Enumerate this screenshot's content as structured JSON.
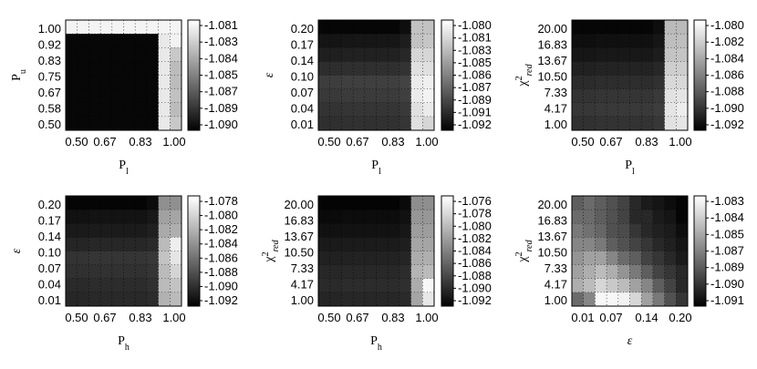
{
  "chart_data": [
    {
      "type": "heatmap",
      "xlabel": "P_l",
      "ylabel": "P_u",
      "xticks": [
        "0.50",
        "0.67",
        "0.83",
        "1.00"
      ],
      "yticks": [
        "1.00",
        "0.92",
        "0.83",
        "0.75",
        "0.67",
        "0.58",
        "0.50"
      ],
      "colorbar": {
        "ticks": [
          "-1.081",
          "-1.083",
          "-1.084",
          "-1.085",
          "-1.087",
          "-1.089",
          "-1.090"
        ],
        "range": [
          -1.0915,
          -1.08
        ]
      },
      "values": [
        [
          -1.0805,
          -1.0805,
          -1.0805,
          -1.0805,
          -1.0805,
          -1.0805,
          -1.0805,
          -1.0805,
          -1.0805,
          -1.0805
        ],
        [
          -1.0912,
          -1.0912,
          -1.0912,
          -1.0912,
          -1.0912,
          -1.0912,
          -1.0912,
          -1.0912,
          -1.081,
          -1.0806
        ],
        [
          -1.0912,
          -1.0912,
          -1.0912,
          -1.0912,
          -1.0912,
          -1.0912,
          -1.0912,
          -1.0912,
          -1.081,
          -1.0825
        ],
        [
          -1.0912,
          -1.0912,
          -1.0912,
          -1.0912,
          -1.0912,
          -1.0912,
          -1.0912,
          -1.0912,
          -1.081,
          -1.083
        ],
        [
          -1.0912,
          -1.0912,
          -1.0912,
          -1.0912,
          -1.0912,
          -1.0912,
          -1.0912,
          -1.0912,
          -1.081,
          -1.083
        ],
        [
          -1.0912,
          -1.0912,
          -1.0912,
          -1.0912,
          -1.0912,
          -1.0912,
          -1.0912,
          -1.0912,
          -1.081,
          -1.0828
        ],
        [
          -1.0912,
          -1.0912,
          -1.0912,
          -1.0912,
          -1.0912,
          -1.0912,
          -1.0912,
          -1.0912,
          -1.081,
          -1.083
        ],
        [
          -1.0912,
          -1.0912,
          -1.0912,
          -1.0912,
          -1.0912,
          -1.0912,
          -1.0912,
          -1.0912,
          -1.081,
          -1.0825
        ]
      ]
    },
    {
      "type": "heatmap",
      "xlabel": "P_l",
      "ylabel": "ε",
      "xticks": [
        "0.50",
        "0.67",
        "0.83",
        "1.00"
      ],
      "yticks": [
        "0.20",
        "0.17",
        "0.14",
        "0.10",
        "0.07",
        "0.04",
        "0.01"
      ],
      "colorbar": {
        "ticks": [
          "-1.080",
          "-1.081",
          "-1.083",
          "-1.085",
          "-1.086",
          "-1.087",
          "-1.089",
          "-1.091",
          "-1.092"
        ],
        "range": [
          -1.0925,
          -1.08
        ]
      },
      "values": [
        [
          -1.0922,
          -1.0922,
          -1.0922,
          -1.0922,
          -1.0922,
          -1.0922,
          -1.0922,
          -1.0918,
          -1.083,
          -1.083
        ],
        [
          -1.0915,
          -1.0915,
          -1.0914,
          -1.0914,
          -1.0914,
          -1.0914,
          -1.0914,
          -1.0911,
          -1.083,
          -1.0828
        ],
        [
          -1.091,
          -1.091,
          -1.0909,
          -1.0909,
          -1.0909,
          -1.0909,
          -1.0909,
          -1.0906,
          -1.082,
          -1.082
        ],
        [
          -1.0903,
          -1.0903,
          -1.0902,
          -1.0902,
          -1.0902,
          -1.0902,
          -1.0902,
          -1.09,
          -1.0815,
          -1.0815
        ],
        [
          -1.0895,
          -1.0895,
          -1.0894,
          -1.0894,
          -1.0894,
          -1.0894,
          -1.0894,
          -1.0892,
          -1.081,
          -1.0808
        ],
        [
          -1.0897,
          -1.0897,
          -1.0896,
          -1.0896,
          -1.0896,
          -1.0896,
          -1.0896,
          -1.0894,
          -1.081,
          -1.0806
        ],
        [
          -1.09,
          -1.09,
          -1.0899,
          -1.0899,
          -1.0899,
          -1.0899,
          -1.0899,
          -1.0897,
          -1.0815,
          -1.081
        ],
        [
          -1.0902,
          -1.0902,
          -1.0901,
          -1.0901,
          -1.0901,
          -1.0901,
          -1.0901,
          -1.0899,
          -1.0815,
          -1.082
        ]
      ]
    },
    {
      "type": "heatmap",
      "xlabel": "P_l",
      "ylabel": "χ²_red",
      "xticks": [
        "0.50",
        "0.67",
        "0.83",
        "1.00"
      ],
      "yticks": [
        "20.00",
        "16.83",
        "13.67",
        "10.50",
        "7.33",
        "4.17",
        "1.00"
      ],
      "colorbar": {
        "ticks": [
          "-1.080",
          "-1.082",
          "-1.084",
          "-1.086",
          "-1.088",
          "-1.090",
          "-1.092"
        ],
        "range": [
          -1.0925,
          -1.0795
        ]
      },
      "values": [
        [
          -1.0922,
          -1.0922,
          -1.0922,
          -1.0922,
          -1.0922,
          -1.0922,
          -1.0922,
          -1.0918,
          -1.083,
          -1.083
        ],
        [
          -1.0918,
          -1.0918,
          -1.0917,
          -1.0917,
          -1.0917,
          -1.0917,
          -1.0917,
          -1.0914,
          -1.0828,
          -1.0828
        ],
        [
          -1.0914,
          -1.0914,
          -1.0913,
          -1.0913,
          -1.0913,
          -1.0913,
          -1.0913,
          -1.091,
          -1.0825,
          -1.0825
        ],
        [
          -1.0908,
          -1.0908,
          -1.0907,
          -1.0907,
          -1.0907,
          -1.0907,
          -1.0907,
          -1.0905,
          -1.082,
          -1.082
        ],
        [
          -1.0903,
          -1.0903,
          -1.0902,
          -1.0902,
          -1.0902,
          -1.0902,
          -1.0902,
          -1.09,
          -1.0815,
          -1.0815
        ],
        [
          -1.0899,
          -1.0899,
          -1.0898,
          -1.0898,
          -1.0898,
          -1.0898,
          -1.0898,
          -1.0896,
          -1.081,
          -1.0808
        ],
        [
          -1.0897,
          -1.0897,
          -1.0896,
          -1.0896,
          -1.0896,
          -1.0896,
          -1.0896,
          -1.0894,
          -1.0808,
          -1.0804
        ],
        [
          -1.09,
          -1.09,
          -1.0899,
          -1.0899,
          -1.0899,
          -1.0899,
          -1.0899,
          -1.0897,
          -1.081,
          -1.0808
        ]
      ]
    },
    {
      "type": "heatmap",
      "xlabel": "P_h",
      "ylabel": "ε",
      "xticks": [
        "0.50",
        "0.67",
        "0.83",
        "1.00"
      ],
      "yticks": [
        "0.20",
        "0.17",
        "0.14",
        "0.10",
        "0.07",
        "0.04",
        "0.01"
      ],
      "colorbar": {
        "ticks": [
          "-1.078",
          "-1.080",
          "-1.082",
          "-1.084",
          "-1.086",
          "-1.088",
          "-1.090",
          "-1.092"
        ],
        "range": [
          -1.0925,
          -1.0775
        ]
      },
      "values": [
        [
          -1.0922,
          -1.0922,
          -1.0922,
          -1.0922,
          -1.0922,
          -1.0922,
          -1.0922,
          -1.0918,
          -1.084,
          -1.084
        ],
        [
          -1.0915,
          -1.0915,
          -1.0914,
          -1.0914,
          -1.0914,
          -1.0914,
          -1.0914,
          -1.0911,
          -1.083,
          -1.0828
        ],
        [
          -1.091,
          -1.091,
          -1.0909,
          -1.0909,
          -1.0909,
          -1.0909,
          -1.0909,
          -1.0906,
          -1.0825,
          -1.0822
        ],
        [
          -1.0903,
          -1.0903,
          -1.0902,
          -1.0902,
          -1.0902,
          -1.0902,
          -1.0902,
          -1.09,
          -1.0815,
          -1.0785
        ],
        [
          -1.0895,
          -1.0895,
          -1.0894,
          -1.0894,
          -1.0894,
          -1.0894,
          -1.0894,
          -1.0892,
          -1.081,
          -1.079
        ],
        [
          -1.0897,
          -1.0897,
          -1.0896,
          -1.0896,
          -1.0896,
          -1.0896,
          -1.0896,
          -1.0894,
          -1.0815,
          -1.08
        ],
        [
          -1.09,
          -1.09,
          -1.0899,
          -1.0899,
          -1.0899,
          -1.0899,
          -1.0899,
          -1.0897,
          -1.0815,
          -1.081
        ],
        [
          -1.0902,
          -1.0902,
          -1.0901,
          -1.0901,
          -1.0901,
          -1.0901,
          -1.0901,
          -1.0899,
          -1.082,
          -1.0815
        ]
      ]
    },
    {
      "type": "heatmap",
      "xlabel": "P_h",
      "ylabel": "χ²_red",
      "xticks": [
        "0.50",
        "0.67",
        "0.83",
        "1.00"
      ],
      "yticks": [
        "20.00",
        "16.83",
        "13.67",
        "10.50",
        "7.33",
        "4.17",
        "1.00"
      ],
      "colorbar": {
        "ticks": [
          "-1.076",
          "-1.078",
          "-1.080",
          "-1.082",
          "-1.084",
          "-1.086",
          "-1.088",
          "-1.090",
          "-1.092"
        ],
        "range": [
          -1.0925,
          -1.0755
        ]
      },
      "values": [
        [
          -1.0922,
          -1.0922,
          -1.0922,
          -1.0922,
          -1.0922,
          -1.0922,
          -1.0922,
          -1.0918,
          -1.083,
          -1.083
        ],
        [
          -1.0918,
          -1.0918,
          -1.0917,
          -1.0917,
          -1.0917,
          -1.0917,
          -1.0917,
          -1.0914,
          -1.0825,
          -1.0825
        ],
        [
          -1.0914,
          -1.0914,
          -1.0913,
          -1.0913,
          -1.0913,
          -1.0913,
          -1.0913,
          -1.091,
          -1.082,
          -1.082
        ],
        [
          -1.0908,
          -1.0908,
          -1.0907,
          -1.0907,
          -1.0907,
          -1.0907,
          -1.0907,
          -1.0905,
          -1.0815,
          -1.0815
        ],
        [
          -1.0903,
          -1.0903,
          -1.0902,
          -1.0902,
          -1.0902,
          -1.0902,
          -1.0902,
          -1.09,
          -1.081,
          -1.0808
        ],
        [
          -1.0899,
          -1.0899,
          -1.0898,
          -1.0898,
          -1.0898,
          -1.0898,
          -1.0898,
          -1.0896,
          -1.0805,
          -1.08
        ],
        [
          -1.0897,
          -1.0897,
          -1.0896,
          -1.0896,
          -1.0896,
          -1.0896,
          -1.0896,
          -1.0894,
          -1.081,
          -1.076
        ],
        [
          -1.09,
          -1.09,
          -1.0899,
          -1.0899,
          -1.0899,
          -1.0899,
          -1.0899,
          -1.0897,
          -1.0815,
          -1.077
        ]
      ]
    },
    {
      "type": "heatmap",
      "xlabel": "ε",
      "ylabel": "χ²_red",
      "xticks": [
        "0.01",
        "0.07",
        "0.14",
        "0.20"
      ],
      "yticks": [
        "20.00",
        "16.83",
        "13.67",
        "10.50",
        "7.33",
        "4.17",
        "1.00"
      ],
      "colorbar": {
        "ticks": [
          "-1.083",
          "-1.084",
          "-1.085",
          "-1.087",
          "-1.089",
          "-1.090",
          "-1.091"
        ],
        "range": [
          -1.092,
          -1.0825
        ]
      },
      "values": [
        [
          -1.0885,
          -1.088,
          -1.0885,
          -1.089,
          -1.0895,
          -1.0905,
          -1.091,
          -1.0912,
          -1.0915,
          -1.0918
        ],
        [
          -1.088,
          -1.088,
          -1.0885,
          -1.089,
          -1.0895,
          -1.0905,
          -1.0905,
          -1.091,
          -1.0912,
          -1.0918
        ],
        [
          -1.0875,
          -1.0878,
          -1.0882,
          -1.089,
          -1.0892,
          -1.09,
          -1.0905,
          -1.0908,
          -1.091,
          -1.0915
        ],
        [
          -1.087,
          -1.087,
          -1.0875,
          -1.0885,
          -1.089,
          -1.0895,
          -1.09,
          -1.0905,
          -1.0908,
          -1.0912
        ],
        [
          -1.0865,
          -1.086,
          -1.086,
          -1.087,
          -1.088,
          -1.0885,
          -1.0895,
          -1.09,
          -1.0905,
          -1.091
        ],
        [
          -1.086,
          -1.0855,
          -1.085,
          -1.0855,
          -1.0865,
          -1.0875,
          -1.0885,
          -1.0895,
          -1.09,
          -1.0905
        ],
        [
          -1.0855,
          -1.085,
          -1.084,
          -1.0845,
          -1.085,
          -1.086,
          -1.087,
          -1.0885,
          -1.0895,
          -1.0905
        ],
        [
          -1.088,
          -1.087,
          -1.0828,
          -1.0828,
          -1.083,
          -1.084,
          -1.086,
          -1.0875,
          -1.089,
          -1.09
        ]
      ]
    }
  ]
}
